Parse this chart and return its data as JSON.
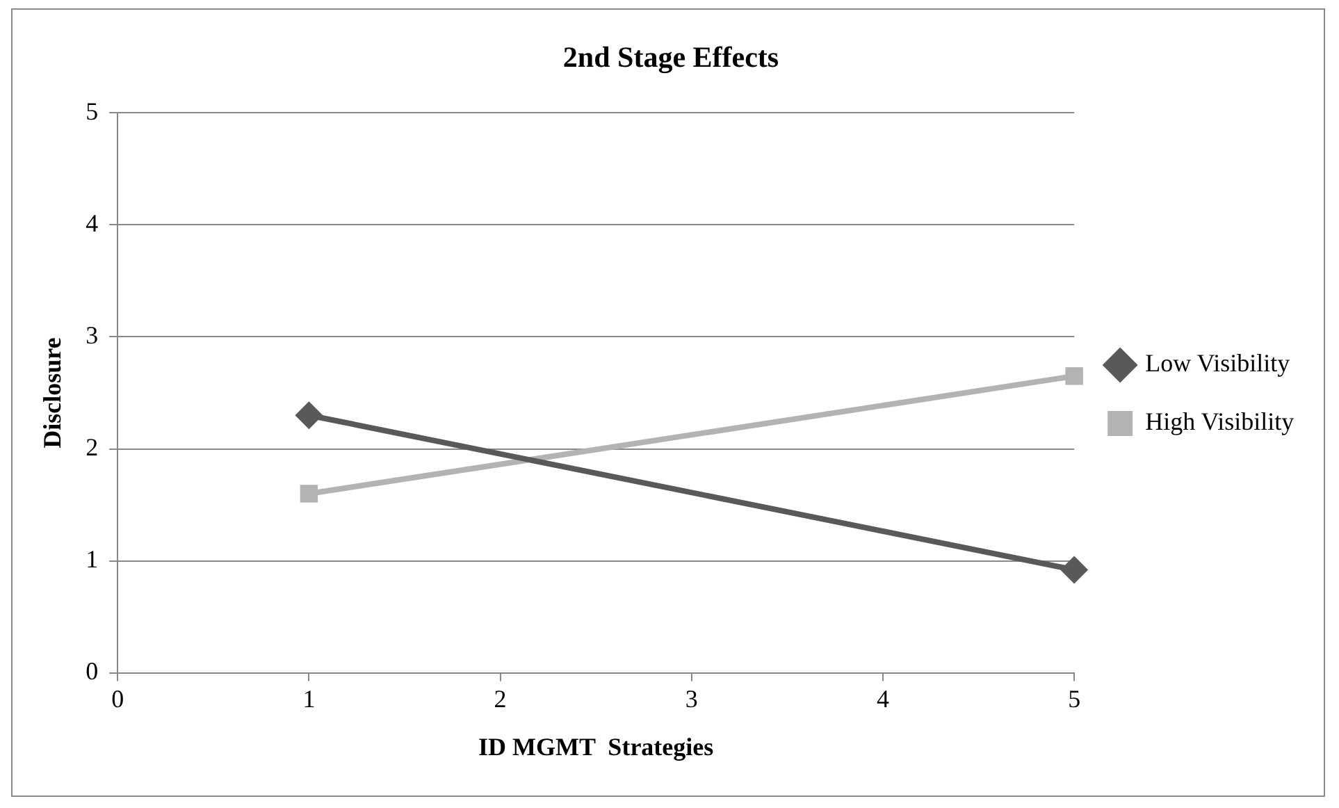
{
  "chart_data": {
    "type": "line",
    "title": "2nd Stage Effects",
    "xlabel": "ID MGMT  Strategies",
    "ylabel": "Disclosure",
    "x": [
      1,
      5
    ],
    "series": [
      {
        "name": "Low Visibility",
        "color": "#595959",
        "values": [
          2.3,
          0.92
        ],
        "marker": "diamond"
      },
      {
        "name": "High Visibility",
        "color": "#b3b3b3",
        "values": [
          1.6,
          2.65
        ],
        "marker": "square"
      }
    ],
    "xlim": [
      0,
      5
    ],
    "xticks": [
      0,
      1,
      2,
      3,
      4,
      5
    ],
    "ylim": [
      0,
      5
    ],
    "yticks": [
      0,
      1,
      2,
      3,
      4,
      5
    ],
    "grid": "y",
    "legend": "right",
    "line_style": "solid"
  }
}
